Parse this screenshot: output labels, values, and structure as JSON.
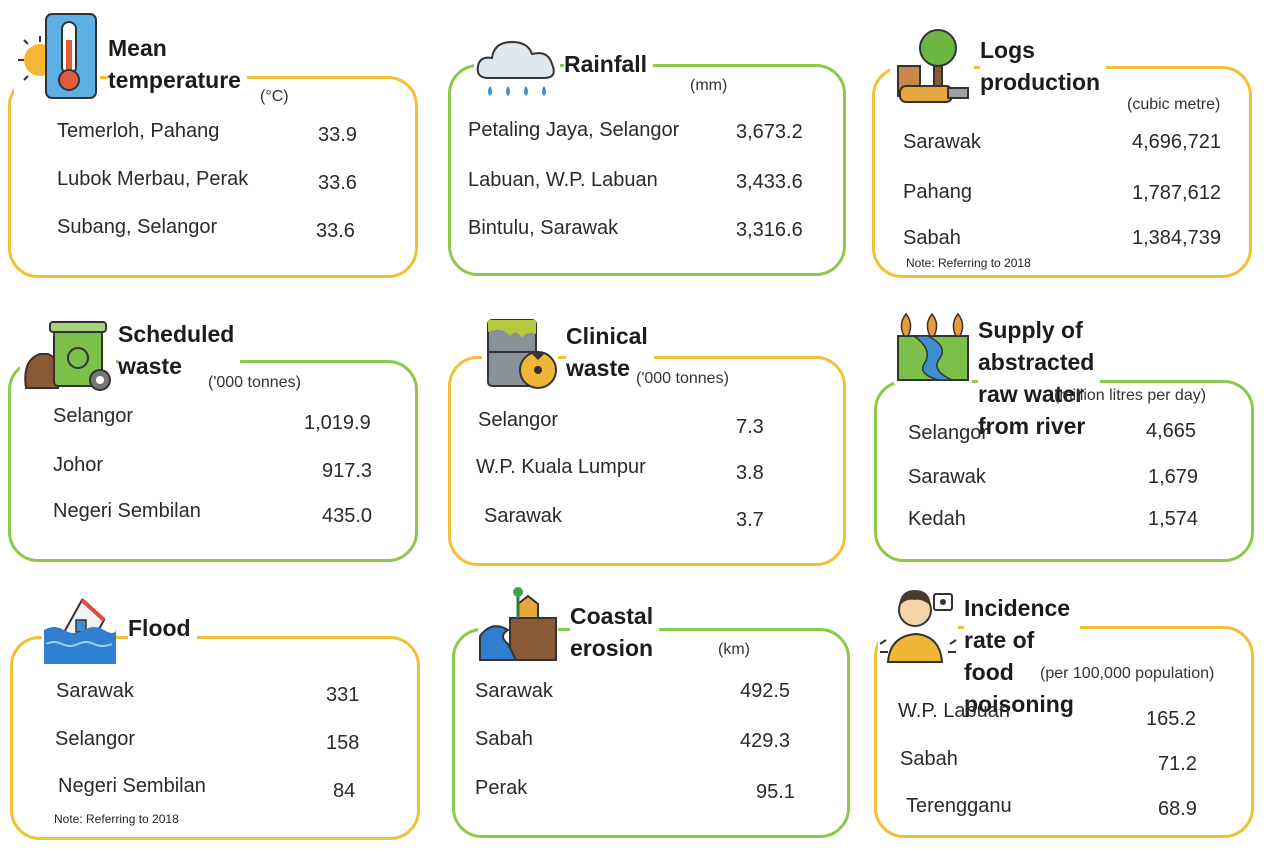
{
  "cards": [
    {
      "key": "temp",
      "title": "Mean\ntemperature",
      "unit": "(°C)",
      "icon": "thermometer-sun-icon",
      "border": "yellow",
      "rows": [
        {
          "label": "Temerloh, Pahang",
          "value": "33.9"
        },
        {
          "label": "Lubok Merbau, Perak",
          "value": "33.6"
        },
        {
          "label": "Subang, Selangor",
          "value": "33.6"
        }
      ]
    },
    {
      "key": "rain",
      "title": "Rainfall",
      "unit": "(mm)",
      "icon": "rain-cloud-icon",
      "border": "green",
      "rows": [
        {
          "label": "Petaling Jaya, Selangor",
          "value": "3,673.2"
        },
        {
          "label": "Labuan, W.P. Labuan",
          "value": "3,433.6"
        },
        {
          "label": "Bintulu, Sarawak",
          "value": "3,316.6"
        }
      ]
    },
    {
      "key": "logs",
      "title": "Logs\nproduction",
      "unit": "(cubic metre)",
      "icon": "tree-chainsaw-icon",
      "border": "yellow",
      "rows": [
        {
          "label": "Sarawak",
          "value": "4,696,721"
        },
        {
          "label": "Pahang",
          "value": "1,787,612"
        },
        {
          "label": "Sabah",
          "value": "1,384,739"
        }
      ],
      "note": "Note: Referring to 2018"
    },
    {
      "key": "sched",
      "title": "Scheduled\nwaste",
      "unit": "('000 tonnes)",
      "icon": "waste-bin-icon",
      "border": "green",
      "rows": [
        {
          "label": "Selangor",
          "value": "1,019.9"
        },
        {
          "label": "Johor",
          "value": "917.3"
        },
        {
          "label": "Negeri Sembilan",
          "value": "435.0"
        }
      ]
    },
    {
      "key": "clin",
      "title": "Clinical\nwaste",
      "unit": "('000 tonnes)",
      "icon": "hazard-barrel-icon",
      "border": "yellow",
      "rows": [
        {
          "label": "Selangor",
          "value": "7.3"
        },
        {
          "label": "W.P. Kuala Lumpur",
          "value": "3.8"
        },
        {
          "label": "Sarawak",
          "value": "3.7"
        }
      ]
    },
    {
      "key": "water",
      "title": "Supply of abstracted\nraw water from river",
      "unit": "(million litres per day)",
      "icon": "river-icon",
      "border": "green",
      "rows": [
        {
          "label": "Selangor",
          "value": "4,665"
        },
        {
          "label": "Sarawak",
          "value": "1,679"
        },
        {
          "label": "Kedah",
          "value": "1,574"
        }
      ]
    },
    {
      "key": "flood",
      "title": "Flood",
      "unit": "",
      "icon": "flooded-house-icon",
      "border": "yellow",
      "rows": [
        {
          "label": "Sarawak",
          "value": "331"
        },
        {
          "label": "Selangor",
          "value": "158"
        },
        {
          "label": "Negeri Sembilan",
          "value": "84"
        }
      ],
      "note": "Note: Referring to 2018"
    },
    {
      "key": "coast",
      "title": "Coastal\nerosion",
      "unit": "(km)",
      "icon": "coastal-erosion-icon",
      "border": "green",
      "rows": [
        {
          "label": "Sarawak",
          "value": "492.5"
        },
        {
          "label": "Sabah",
          "value": "429.3"
        },
        {
          "label": "Perak",
          "value": "95.1"
        }
      ]
    },
    {
      "key": "food",
      "title": "Incidence rate of\nfood poisoning",
      "unit": "(per 100,000 population)",
      "icon": "sick-person-icon",
      "border": "yellow",
      "rows": [
        {
          "label": "W.P. Labuan",
          "value": "165.2"
        },
        {
          "label": "Sabah",
          "value": "71.2"
        },
        {
          "label": "Terengganu",
          "value": "68.9"
        }
      ]
    }
  ]
}
